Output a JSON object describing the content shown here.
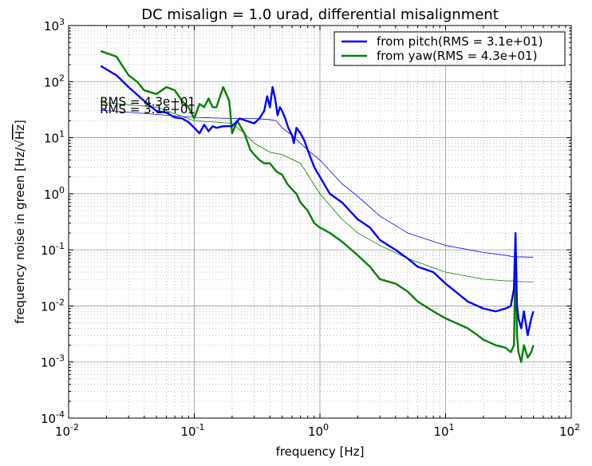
{
  "chart_data": {
    "type": "line",
    "title": "DC misalign = 1.0 urad, differential misalignment",
    "xlabel": "frequency [Hz]",
    "ylabel": "frequency noise in green [Hz/√Hz]",
    "ylabel_parts": {
      "before": "frequency noise in green [Hz/",
      "radical": "√",
      "under": "Hz",
      "after": "]"
    },
    "xscale": "log",
    "yscale": "log",
    "xlim": [
      0.01,
      100
    ],
    "ylim": [
      0.0001,
      1000
    ],
    "grid": true,
    "legend_position": "top-right",
    "x_ticks": [
      {
        "base": "10",
        "exp": "-2"
      },
      {
        "base": "10",
        "exp": "-1"
      },
      {
        "base": "10",
        "exp": "0"
      },
      {
        "base": "10",
        "exp": "1"
      },
      {
        "base": "10",
        "exp": "2"
      }
    ],
    "y_ticks": [
      {
        "base": "10",
        "exp": "-4"
      },
      {
        "base": "10",
        "exp": "-3"
      },
      {
        "base": "10",
        "exp": "-2"
      },
      {
        "base": "10",
        "exp": "-1"
      },
      {
        "base": "10",
        "exp": "0"
      },
      {
        "base": "10",
        "exp": "1"
      },
      {
        "base": "10",
        "exp": "2"
      },
      {
        "base": "10",
        "exp": "3"
      }
    ],
    "annotations": [
      {
        "text": "RMS = 4.3e+01",
        "x": 0.018,
        "y": 44
      },
      {
        "text": "RMS = 3.1e+01",
        "x": 0.018,
        "y": 32
      }
    ],
    "series": [
      {
        "name": "from pitch(RMS = 3.1e+01)",
        "color": "#0000ff",
        "x": [
          0.018,
          0.024,
          0.03,
          0.04,
          0.05,
          0.06,
          0.07,
          0.08,
          0.09,
          0.1,
          0.11,
          0.12,
          0.13,
          0.14,
          0.15,
          0.17,
          0.2,
          0.23,
          0.26,
          0.3,
          0.33,
          0.36,
          0.38,
          0.4,
          0.42,
          0.44,
          0.46,
          0.48,
          0.5,
          0.53,
          0.56,
          0.6,
          0.62,
          0.65,
          0.7,
          0.75,
          0.8,
          0.9,
          1.0,
          1.2,
          1.5,
          2.0,
          2.5,
          3.0,
          4.0,
          5.0,
          6.0,
          8.0,
          10,
          12,
          15,
          18,
          20,
          25,
          30,
          33,
          35,
          36,
          37,
          38,
          40,
          42,
          45,
          48,
          50
        ],
        "y": [
          190,
          130,
          80,
          45,
          30,
          28,
          23,
          22,
          19,
          15,
          12,
          17,
          13,
          16,
          15,
          16,
          16,
          22,
          20,
          18,
          22,
          30,
          55,
          35,
          80,
          50,
          25,
          35,
          30,
          22,
          15,
          11,
          8,
          15,
          12,
          9,
          6,
          3,
          2,
          1.0,
          0.7,
          0.35,
          0.25,
          0.15,
          0.1,
          0.07,
          0.05,
          0.04,
          0.025,
          0.018,
          0.012,
          0.01,
          0.009,
          0.008,
          0.009,
          0.01,
          0.02,
          0.2,
          0.01,
          0.006,
          0.004,
          0.008,
          0.003,
          0.006,
          0.008
        ]
      },
      {
        "name": "from yaw(RMS = 4.3e+01)",
        "color": "#008000",
        "x": [
          0.018,
          0.024,
          0.03,
          0.035,
          0.04,
          0.05,
          0.06,
          0.07,
          0.08,
          0.09,
          0.1,
          0.11,
          0.12,
          0.13,
          0.14,
          0.15,
          0.17,
          0.19,
          0.2,
          0.22,
          0.25,
          0.28,
          0.3,
          0.33,
          0.36,
          0.4,
          0.45,
          0.5,
          0.55,
          0.6,
          0.65,
          0.7,
          0.8,
          0.9,
          1.0,
          1.2,
          1.5,
          2.0,
          2.5,
          3.0,
          4.0,
          5.0,
          6.0,
          8.0,
          10,
          12,
          15,
          18,
          20,
          25,
          30,
          33,
          35,
          36,
          37,
          38,
          40,
          42,
          45,
          48,
          50
        ],
        "y": [
          350,
          280,
          130,
          100,
          70,
          60,
          80,
          70,
          45,
          35,
          22,
          40,
          35,
          50,
          35,
          35,
          80,
          45,
          12,
          20,
          12,
          6,
          5,
          4,
          3.5,
          3.5,
          2.5,
          2.2,
          1.5,
          1.2,
          1.0,
          0.7,
          0.5,
          0.3,
          0.25,
          0.2,
          0.14,
          0.08,
          0.05,
          0.03,
          0.025,
          0.018,
          0.012,
          0.008,
          0.006,
          0.005,
          0.004,
          0.003,
          0.0025,
          0.002,
          0.0018,
          0.0015,
          0.002,
          0.08,
          0.003,
          0.0015,
          0.001,
          0.002,
          0.0012,
          0.0015,
          0.002
        ]
      }
    ],
    "rms_curves": [
      {
        "color": "#0000ff",
        "x": [
          0.018,
          0.05,
          0.1,
          0.2,
          0.3,
          0.4,
          0.45,
          0.5,
          0.6,
          0.7,
          0.8,
          1.0,
          1.5,
          2.0,
          3.0,
          5.0,
          10,
          20,
          30,
          35,
          40,
          50
        ],
        "y": [
          31,
          26,
          23,
          22,
          22,
          21,
          20,
          15,
          11,
          8,
          6,
          4,
          1.5,
          0.9,
          0.4,
          0.2,
          0.12,
          0.09,
          0.08,
          0.075,
          0.075,
          0.074
        ]
      },
      {
        "color": "#008000",
        "x": [
          0.018,
          0.05,
          0.1,
          0.15,
          0.2,
          0.25,
          0.3,
          0.4,
          0.5,
          0.7,
          1.0,
          1.5,
          2.0,
          3.0,
          5.0,
          10,
          20,
          30,
          35,
          40,
          50
        ],
        "y": [
          43,
          35,
          20,
          19,
          18,
          12,
          8,
          5.5,
          5,
          3.5,
          1.0,
          0.35,
          0.2,
          0.12,
          0.07,
          0.04,
          0.03,
          0.028,
          0.028,
          0.027,
          0.027
        ]
      }
    ]
  }
}
